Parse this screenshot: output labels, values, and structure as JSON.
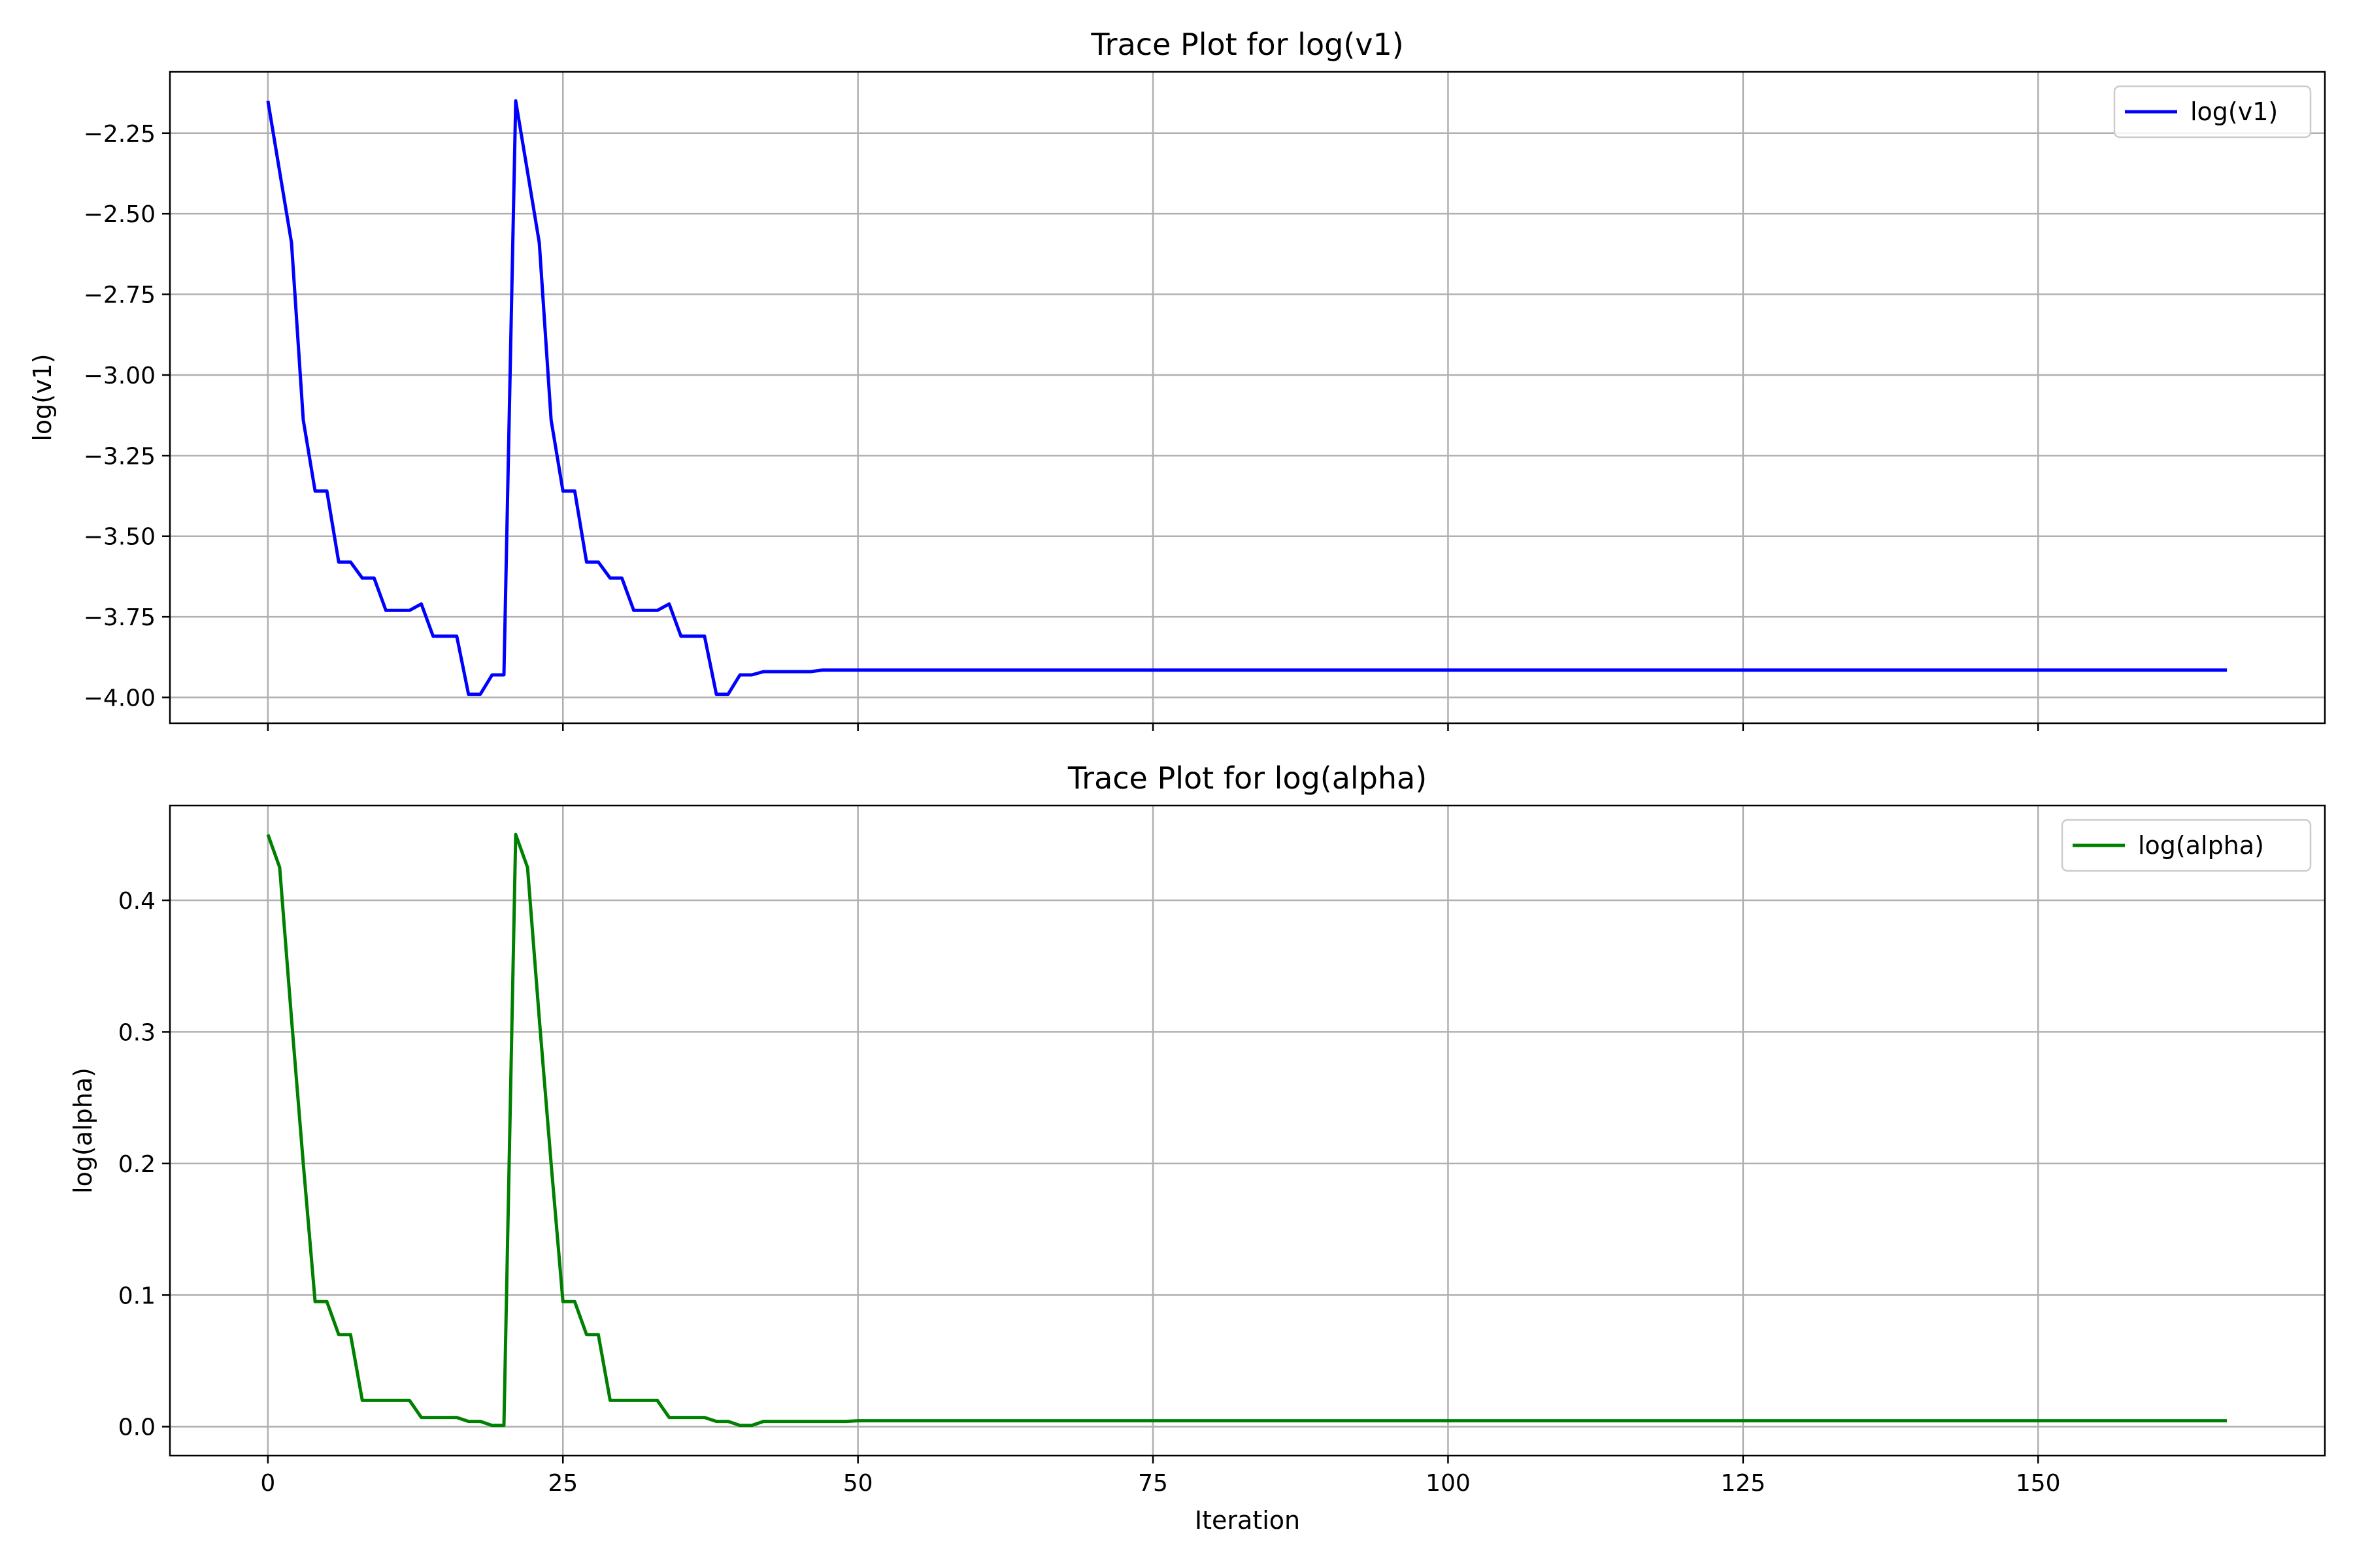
{
  "chart_data": [
    {
      "type": "line",
      "title": "Trace Plot for log(v1)",
      "xlabel": "",
      "ylabel": "log(v1)",
      "xlim": [
        -8.3,
        174.3
      ],
      "ylim": [
        -4.08,
        -2.06
      ],
      "xticks": [
        0,
        25,
        50,
        75,
        100,
        125,
        150
      ],
      "xtick_labels_visible": false,
      "yticks": [
        -4.0,
        -3.75,
        -3.5,
        -3.25,
        -3.0,
        -2.75,
        -2.5,
        -2.25
      ],
      "ytick_labels": [
        "−4.00",
        "−3.75",
        "−3.50",
        "−3.25",
        "−3.00",
        "−2.75",
        "−2.50",
        "−2.25"
      ],
      "grid": true,
      "legend_position": "top-right",
      "series": [
        {
          "name": "log(v1)",
          "color": "#0000ff",
          "x": [
            0,
            1,
            2,
            3,
            4,
            5,
            6,
            7,
            8,
            9,
            10,
            11,
            12,
            13,
            14,
            15,
            16,
            17,
            18,
            19,
            20,
            21,
            22,
            23,
            24,
            25,
            26,
            27,
            28,
            29,
            30,
            31,
            32,
            33,
            34,
            35,
            36,
            37,
            38,
            39,
            40,
            41,
            42,
            43,
            44,
            45,
            46,
            47,
            48,
            49,
            50,
            166
          ],
          "y": [
            -2.15,
            -2.37,
            -2.59,
            -3.14,
            -3.36,
            -3.36,
            -3.58,
            -3.58,
            -3.63,
            -3.63,
            -3.73,
            -3.73,
            -3.73,
            -3.71,
            -3.81,
            -3.81,
            -3.81,
            -3.99,
            -3.99,
            -3.93,
            -3.93,
            -2.15,
            -2.37,
            -2.59,
            -3.14,
            -3.36,
            -3.36,
            -3.58,
            -3.58,
            -3.63,
            -3.63,
            -3.73,
            -3.73,
            -3.73,
            -3.71,
            -3.81,
            -3.81,
            -3.81,
            -3.99,
            -3.99,
            -3.93,
            -3.93,
            -3.92,
            -3.92,
            -3.92,
            -3.92,
            -3.92,
            -3.915,
            -3.915,
            -3.915,
            -3.915,
            -3.915
          ]
        }
      ]
    },
    {
      "type": "line",
      "title": "Trace Plot for log(alpha)",
      "xlabel": "Iteration",
      "ylabel": "log(alpha)",
      "xlim": [
        -8.3,
        174.3
      ],
      "ylim": [
        -0.022,
        0.472
      ],
      "xticks": [
        0,
        25,
        50,
        75,
        100,
        125,
        150
      ],
      "xtick_labels": [
        "0",
        "25",
        "50",
        "75",
        "100",
        "125",
        "150"
      ],
      "yticks": [
        0.0,
        0.1,
        0.2,
        0.3,
        0.4
      ],
      "ytick_labels": [
        "0.0",
        "0.1",
        "0.2",
        "0.3",
        "0.4"
      ],
      "grid": true,
      "legend_position": "top-right",
      "series": [
        {
          "name": "log(alpha)",
          "color": "#008000",
          "x": [
            0,
            1,
            2,
            3,
            4,
            5,
            6,
            7,
            8,
            9,
            10,
            11,
            12,
            13,
            14,
            15,
            16,
            17,
            18,
            19,
            20,
            21,
            22,
            23,
            24,
            25,
            26,
            27,
            28,
            29,
            30,
            31,
            32,
            33,
            34,
            35,
            36,
            37,
            38,
            39,
            40,
            41,
            42,
            43,
            44,
            45,
            46,
            47,
            48,
            49,
            50,
            166
          ],
          "y": [
            0.45,
            0.425,
            0.31,
            0.2,
            0.095,
            0.095,
            0.07,
            0.07,
            0.02,
            0.02,
            0.02,
            0.02,
            0.02,
            0.007,
            0.007,
            0.007,
            0.007,
            0.004,
            0.004,
            0.001,
            0.001,
            0.45,
            0.425,
            0.31,
            0.2,
            0.095,
            0.095,
            0.07,
            0.07,
            0.02,
            0.02,
            0.02,
            0.02,
            0.02,
            0.007,
            0.007,
            0.007,
            0.007,
            0.004,
            0.004,
            0.001,
            0.001,
            0.004,
            0.004,
            0.004,
            0.004,
            0.004,
            0.004,
            0.004,
            0.004,
            0.0045,
            0.0045
          ]
        }
      ]
    }
  ]
}
